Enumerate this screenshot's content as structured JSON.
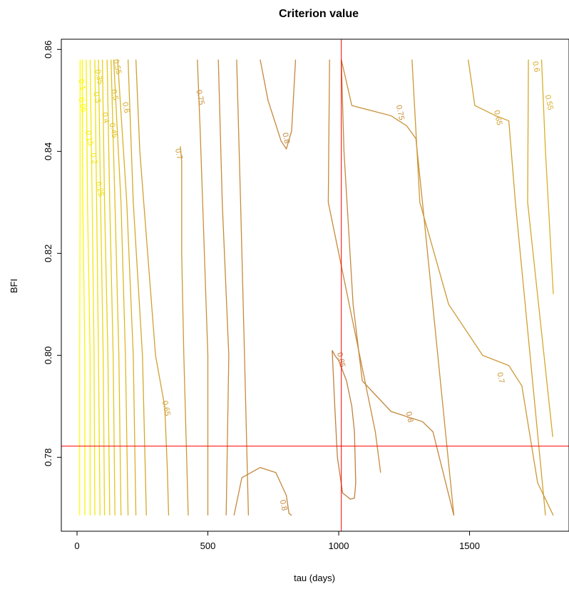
{
  "chart_data": {
    "type": "contour",
    "title": "Criterion value",
    "xlabel": "tau (days)",
    "ylabel": "BFI",
    "xlim": [
      -60,
      1880
    ],
    "ylim": [
      0.7655,
      0.862
    ],
    "x_ticks": [
      0,
      500,
      1000,
      1500
    ],
    "x_tick_labels": [
      "0",
      "500",
      "1000",
      "1500"
    ],
    "y_ticks": [
      0.78,
      0.8,
      0.82,
      0.84,
      0.86
    ],
    "y_tick_labels": [
      "0.78",
      "0.80",
      "0.82",
      "0.84",
      "0.86"
    ],
    "grid": false,
    "legend": "none",
    "reference_lines": {
      "vertical_x": 1010,
      "horizontal_y": 0.7822,
      "color": "#ff0000"
    },
    "color_low": "#ffff00",
    "color_high": "#c08040",
    "contours": [
      {
        "level": 0.05,
        "label": "0.05",
        "points": [
          [
            10,
            0.7686
          ],
          [
            10,
            0.8
          ],
          [
            12,
            0.83
          ],
          [
            12,
            0.858
          ]
        ],
        "label_at": [
          12,
          0.849
        ]
      },
      {
        "level": 0.1,
        "label": "0.1",
        "points": [
          [
            30,
            0.7686
          ],
          [
            30,
            0.8
          ],
          [
            22,
            0.83
          ],
          [
            20,
            0.858
          ]
        ],
        "label_at": [
          10,
          0.853
        ]
      },
      {
        "level": 0.15,
        "label": "0.15",
        "points": [
          [
            50,
            0.7686
          ],
          [
            50,
            0.8
          ],
          [
            40,
            0.83
          ],
          [
            35,
            0.858
          ]
        ],
        "label_at": [
          38,
          0.8425
        ]
      },
      {
        "level": 0.2,
        "label": "0.2",
        "points": [
          [
            68,
            0.7686
          ],
          [
            65,
            0.8
          ],
          [
            58,
            0.83
          ],
          [
            50,
            0.858
          ]
        ],
        "label_at": [
          55,
          0.8385
        ]
      },
      {
        "level": 0.25,
        "label": "0.25",
        "points": [
          [
            88,
            0.7686
          ],
          [
            82,
            0.8
          ],
          [
            75,
            0.83
          ],
          [
            68,
            0.858
          ]
        ],
        "label_at": [
          78,
          0.8325
        ]
      },
      {
        "level": 0.3,
        "label": "0.3",
        "points": [
          [
            105,
            0.7686
          ],
          [
            100,
            0.8
          ],
          [
            90,
            0.83
          ],
          [
            82,
            0.858
          ]
        ],
        "label_at": [
          68,
          0.8505
        ]
      },
      {
        "level": 0.35,
        "label": "0.35",
        "points": [
          [
            125,
            0.7686
          ],
          [
            118,
            0.8
          ],
          [
            105,
            0.83
          ],
          [
            97,
            0.858
          ]
        ],
        "label_at": [
          75,
          0.8545
        ]
      },
      {
        "level": 0.4,
        "label": "0.4",
        "points": [
          [
            145,
            0.7686
          ],
          [
            138,
            0.8
          ],
          [
            125,
            0.83
          ],
          [
            115,
            0.858
          ]
        ],
        "label_at": [
          100,
          0.8465
        ]
      },
      {
        "level": 0.45,
        "label": "0.45",
        "points": [
          [
            168,
            0.7686
          ],
          [
            160,
            0.8
          ],
          [
            145,
            0.83
          ],
          [
            130,
            0.858
          ]
        ],
        "label_at": [
          130,
          0.844
        ]
      },
      {
        "level": 0.5,
        "label": "0.5",
        "points": [
          [
            195,
            0.7686
          ],
          [
            185,
            0.8
          ],
          [
            168,
            0.83
          ],
          [
            140,
            0.858
          ]
        ],
        "label_at": [
          135,
          0.851
        ]
      },
      {
        "level": 0.55,
        "label": "0.55",
        "points": [
          [
            225,
            0.7686
          ],
          [
            215,
            0.8
          ],
          [
            190,
            0.83
          ],
          [
            155,
            0.858
          ]
        ],
        "label_at": [
          145,
          0.8565
        ]
      },
      {
        "level": 0.6,
        "label": "0.6",
        "points": [
          [
            265,
            0.7686
          ],
          [
            250,
            0.8
          ],
          [
            215,
            0.83
          ],
          [
            195,
            0.858
          ]
        ],
        "label_at": [
          178,
          0.8485
        ]
      },
      {
        "level": 0.65,
        "label": "0.65",
        "points": [
          [
            350,
            0.7686
          ],
          [
            345,
            0.778
          ],
          [
            335,
            0.79
          ],
          [
            300,
            0.8
          ],
          [
            270,
            0.82
          ],
          [
            240,
            0.84
          ],
          [
            225,
            0.858
          ]
        ],
        "label_at": [
          332,
          0.7895
        ]
      },
      {
        "level": 0.7,
        "label": "0.7",
        "points": [
          [
            425,
            0.7686
          ],
          [
            408,
            0.8
          ],
          [
            400,
            0.82
          ],
          [
            400,
            0.838
          ],
          [
            395,
            0.841
          ]
        ],
        "label_at": [
          380,
          0.8394
        ]
      },
      {
        "level": 0.75,
        "label": "0.75",
        "points": [
          [
            500,
            0.7686
          ],
          [
            500,
            0.8
          ],
          [
            480,
            0.83
          ],
          [
            470,
            0.845
          ],
          [
            460,
            0.858
          ]
        ],
        "label_at": [
          462,
          0.8505
        ]
      },
      {
        "level": 0.8,
        "label": "0.8",
        "points": [
          [
            700,
            0.858
          ],
          [
            730,
            0.85
          ],
          [
            780,
            0.842
          ],
          [
            800,
            0.8405
          ],
          [
            820,
            0.844
          ],
          [
            835,
            0.858
          ]
        ],
        "label_at": [
          790,
          0.8425
        ]
      },
      {
        "level": 0.75,
        "label": "0.75",
        "points": [
          [
            1010,
            0.858
          ],
          [
            1050,
            0.849
          ],
          [
            1200,
            0.847
          ],
          [
            1260,
            0.845
          ],
          [
            1295,
            0.8425
          ],
          [
            1320,
            0.83
          ],
          [
            1440,
            0.7686
          ]
        ],
        "label_at": [
          1226,
          0.8475
        ]
      },
      {
        "level": 0.65,
        "label": "0.65",
        "points": [
          [
            1495,
            0.858
          ],
          [
            1520,
            0.849
          ],
          [
            1600,
            0.847
          ],
          [
            1650,
            0.846
          ],
          [
            1675,
            0.83
          ],
          [
            1790,
            0.7686
          ]
        ],
        "label_at": [
          1600,
          0.8465
        ]
      },
      {
        "level": 0.6,
        "label": "0.6",
        "points": [
          [
            1725,
            0.858
          ],
          [
            1722,
            0.83
          ],
          [
            1818,
            0.784
          ]
        ],
        "label_at": [
          1745,
          0.8565
        ]
      },
      {
        "level": 0.55,
        "label": "0.55",
        "points": [
          [
            1775,
            0.858
          ],
          [
            1790,
            0.84
          ],
          [
            1820,
            0.812
          ]
        ],
        "label_at": [
          1795,
          0.8495
        ]
      },
      {
        "level": 0.85,
        "label": "0.85",
        "points": [
          [
            975,
            0.801
          ],
          [
            985,
            0.79
          ],
          [
            995,
            0.78
          ],
          [
            1015,
            0.773
          ],
          [
            1045,
            0.7718
          ],
          [
            1060,
            0.772
          ],
          [
            1065,
            0.775
          ],
          [
            1060,
            0.785
          ],
          [
            1050,
            0.79
          ],
          [
            1030,
            0.795
          ],
          [
            1000,
            0.799
          ],
          [
            985,
            0.8
          ],
          [
            975,
            0.801
          ]
        ],
        "label_at": [
          1000,
          0.799
        ]
      },
      {
        "level": 0.8,
        "label": "0.8",
        "points": [
          [
            1010,
            0.858
          ],
          [
            1020,
            0.84
          ],
          [
            1055,
            0.81
          ],
          [
            1090,
            0.795
          ],
          [
            1200,
            0.789
          ],
          [
            1320,
            0.787
          ],
          [
            1360,
            0.785
          ],
          [
            1440,
            0.7686
          ]
        ],
        "label_at": [
          1262,
          0.7878
        ]
      },
      {
        "level": 0.7,
        "label": "0.7",
        "points": [
          [
            1280,
            0.858
          ],
          [
            1310,
            0.83
          ],
          [
            1420,
            0.81
          ],
          [
            1550,
            0.8
          ],
          [
            1650,
            0.798
          ],
          [
            1700,
            0.794
          ],
          [
            1760,
            0.775
          ],
          [
            1820,
            0.7686
          ]
        ],
        "label_at": [
          1610,
          0.7955
        ]
      },
      {
        "level": 0.8,
        "label": "0.8",
        "points": [
          [
            600,
            0.7686
          ],
          [
            630,
            0.776
          ],
          [
            700,
            0.778
          ],
          [
            760,
            0.777
          ],
          [
            800,
            0.7725
          ],
          [
            810,
            0.769
          ],
          [
            820,
            0.7686
          ]
        ],
        "label_at": [
          780,
          0.7705
        ]
      }
    ],
    "extra_lines": [
      {
        "points": [
          [
            570,
            0.7686
          ],
          [
            580,
            0.8
          ],
          [
            555,
            0.83
          ],
          [
            540,
            0.858
          ]
        ]
      },
      {
        "points": [
          [
            655,
            0.7686
          ],
          [
            640,
            0.8
          ],
          [
            625,
            0.83
          ],
          [
            610,
            0.858
          ]
        ]
      },
      {
        "points": [
          [
            965,
            0.858
          ],
          [
            960,
            0.83
          ],
          [
            1060,
            0.805
          ],
          [
            1140,
            0.785
          ],
          [
            1160,
            0.777
          ]
        ]
      }
    ]
  }
}
